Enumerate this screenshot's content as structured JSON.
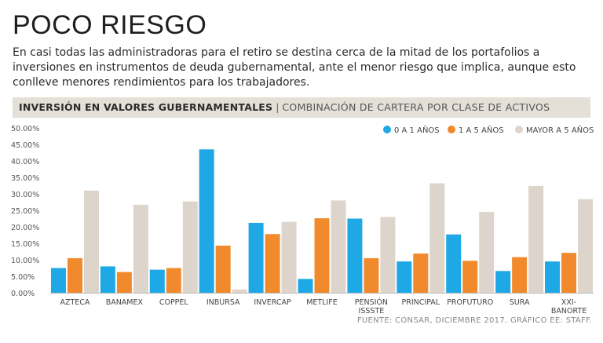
{
  "header": {
    "title": "POCO RIESGO",
    "subtitle": "En casi todas las administradoras para el retiro se destina cerca de la mitad de los portafolios a inversiones en instrumentos de deuda gubernamental, ante el menor riesgo que implica, aunque esto conlleve menores rendimientos para los trabajadores."
  },
  "banner": {
    "bold": "INVERSIÓN EN VALORES GUBERNAMENTALES",
    "separator": "|",
    "light": "COMBINACIÓN DE CARTERA POR CLASE DE ACTIVOS"
  },
  "footer": {
    "source": "FUENTE: CONSAR, DICIEMBRE 2017.  GRÁFICO EE: STAFF."
  },
  "colors": {
    "series1": "#1ea8e6",
    "series2": "#f08a2c",
    "series3": "#ddd5cb"
  },
  "chart_data": {
    "type": "bar",
    "title": "INVERSIÓN EN VALORES GUBERNAMENTALES",
    "xlabel": "",
    "ylabel": "",
    "ylim": [
      0,
      50
    ],
    "yticks": [
      "0.00%",
      "5.00%",
      "10.00%",
      "15.00%",
      "20.00%",
      "25.00%",
      "30.00%",
      "35.00%",
      "40.00%",
      "45.00%",
      "50.00%"
    ],
    "legend_position": "top-right",
    "categories": [
      [
        "AZTECA"
      ],
      [
        "BANAMEX"
      ],
      [
        "COPPEL"
      ],
      [
        "INBURSA"
      ],
      [
        "INVERCAP"
      ],
      [
        "METLIFE"
      ],
      [
        "PENSIÓN",
        "ISSSTE"
      ],
      [
        "PRINCIPAL"
      ],
      [
        "PROFUTURO"
      ],
      [
        "SURA"
      ],
      [
        "XXI-",
        "BANORTE"
      ]
    ],
    "series": [
      {
        "name": "0 A 1 AÑOS",
        "values": [
          7.5,
          8.0,
          7.0,
          43.5,
          21.2,
          4.2,
          22.5,
          9.5,
          17.7,
          6.6,
          9.5
        ]
      },
      {
        "name": "1 A 5 AÑOS",
        "values": [
          10.5,
          6.3,
          7.5,
          14.3,
          17.8,
          22.6,
          10.5,
          11.9,
          9.7,
          10.8,
          12.1
        ]
      },
      {
        "name": "MAYOR A 5 AÑOS",
        "values": [
          31.0,
          26.7,
          27.7,
          1.0,
          21.5,
          28.0,
          23.0,
          33.2,
          24.5,
          32.4,
          28.4
        ]
      }
    ]
  }
}
